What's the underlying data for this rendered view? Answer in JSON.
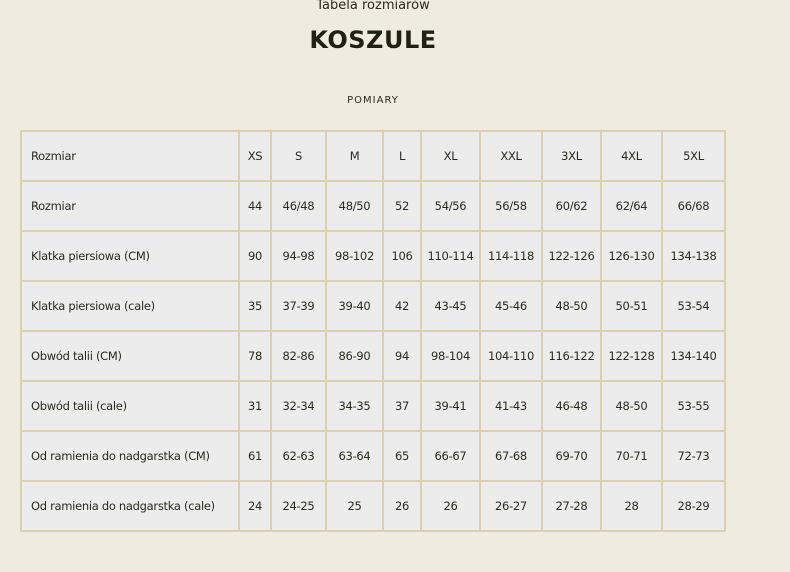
{
  "header": {
    "subtitle": "Tabela rozmiarów",
    "title": "KOSZULE",
    "section": "POMIARY"
  },
  "table": {
    "rows": [
      [
        "Rozmiar",
        "XS",
        "S",
        "M",
        "L",
        "XL",
        "XXL",
        "3XL",
        "4XL",
        "5XL"
      ],
      [
        "Rozmiar",
        "44",
        "46/48",
        "48/50",
        "52",
        "54/56",
        "56/58",
        "60/62",
        "62/64",
        "66/68"
      ],
      [
        "Klatka piersiowa (CM)",
        "90",
        "94-98",
        "98-102",
        "106",
        "110-114",
        "114-118",
        "122-126",
        "126-130",
        "134-138"
      ],
      [
        "Klatka piersiowa (cale)",
        "35",
        "37-39",
        "39-40",
        "42",
        "43-45",
        "45-46",
        "48-50",
        "50-51",
        "53-54"
      ],
      [
        "Obwód talii (CM)",
        "78",
        "82-86",
        "86-90",
        "94",
        "98-104",
        "104-110",
        "116-122",
        "122-128",
        "134-140"
      ],
      [
        "Obwód talii (cale)",
        "31",
        "32-34",
        "34-35",
        "37",
        "39-41",
        "41-43",
        "46-48",
        "48-50",
        "53-55"
      ],
      [
        "Od ramienia do nadgarstka (CM)",
        "61",
        "62-63",
        "63-64",
        "65",
        "66-67",
        "67-68",
        "69-70",
        "70-71",
        "72-73"
      ],
      [
        "Od ramienia do nadgarstka (cale)",
        "24",
        "24-25",
        "25",
        "26",
        "26",
        "26-27",
        "27-28",
        "28",
        "28-29"
      ]
    ]
  }
}
